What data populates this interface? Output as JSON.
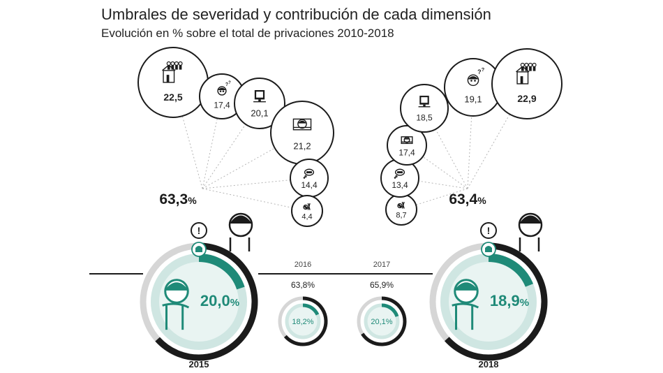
{
  "header": {
    "title": "Umbrales de severidad y contribución de cada dimensión",
    "subtitle": "Evolución en % sobre el total de privaciones 2010-2018"
  },
  "chart_data": {
    "type": "infographic",
    "title": "Umbrales de severidad y contribución de cada dimensión",
    "subtitle": "Evolución en % sobre el total de privaciones 2010-2018",
    "dimension_contributions": {
      "2015": [
        {
          "icon": "housing-icon",
          "label": "22,5",
          "value": 22.5
        },
        {
          "icon": "child-question-icon",
          "label": "17,4",
          "value": 17.4
        },
        {
          "icon": "computer-icon",
          "label": "20,1",
          "value": 20.1
        },
        {
          "icon": "sleeping-child-icon",
          "label": "21,2",
          "value": 21.2
        },
        {
          "icon": "thought-bubble-icon",
          "label": "14,4",
          "value": 14.4
        },
        {
          "icon": "food-icon",
          "label": "4,4",
          "value": 4.4
        }
      ],
      "2018": [
        {
          "icon": "food-icon",
          "label": "8,7",
          "value": 8.7
        },
        {
          "icon": "thought-bubble-icon",
          "label": "13,4",
          "value": 13.4
        },
        {
          "icon": "sleeping-child-icon",
          "label": "17,4",
          "value": 17.4
        },
        {
          "icon": "computer-icon",
          "label": "18,5",
          "value": 18.5
        },
        {
          "icon": "child-question-icon",
          "label": "19,1",
          "value": 19.1
        },
        {
          "icon": "housing-icon",
          "label": "22,9",
          "value": 22.9
        }
      ]
    },
    "years": [
      {
        "year": "2015",
        "total_label": "63,3",
        "total": 63.3,
        "severe_label": "20,0",
        "severe": 20.0
      },
      {
        "year": "2016",
        "total_label": "63,8%",
        "total": 63.8,
        "severe_label": "18,2%",
        "severe": 18.2
      },
      {
        "year": "2017",
        "total_label": "65,9%",
        "total": 65.9,
        "severe_label": "20,1%",
        "severe": 20.1
      },
      {
        "year": "2018",
        "total_label": "63,4",
        "total": 63.4,
        "severe_label": "18,9",
        "severe": 18.9
      }
    ],
    "percent_sign": "%",
    "colors": {
      "dark": "#1b1b1b",
      "grey": "#d6d6d6",
      "teal": "#1f8a78",
      "tealLight": "#cfe6e2",
      "tealPale": "#e9f4f2"
    }
  }
}
